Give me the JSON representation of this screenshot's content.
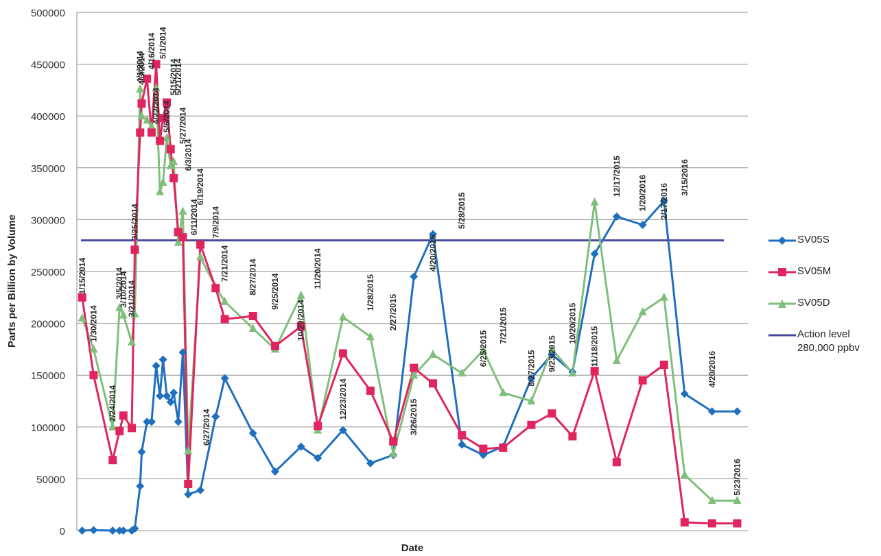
{
  "chart_data": {
    "type": "line",
    "xlabel": "Date",
    "ylabel": "Parts per Billion by Volume",
    "ylim": [
      0,
      500000
    ],
    "yticks": [
      0,
      50000,
      100000,
      150000,
      200000,
      250000,
      300000,
      350000,
      400000,
      450000,
      500000
    ],
    "xlim": [
      "2014-01-08",
      "2016-06-06"
    ],
    "grid": true,
    "legend_position": "right",
    "threshold": {
      "name": "Action level",
      "sublabel": "280,000 ppbv",
      "value": 280000,
      "color": "#4a4a9c"
    },
    "series": [
      {
        "name": "SV05S",
        "color": "#1f6fbf",
        "marker": "diamond",
        "points": [
          [
            "2014-01-15",
            0
          ],
          [
            "2014-01-30",
            500
          ],
          [
            "2014-02-24",
            0
          ],
          [
            "2014-03-05",
            0
          ],
          [
            "2014-03-10",
            0
          ],
          [
            "2014-03-21",
            0
          ],
          [
            "2014-03-25",
            2000
          ],
          [
            "2014-04-01",
            43000
          ],
          [
            "2014-04-03",
            76000
          ],
          [
            "2014-04-10",
            105000
          ],
          [
            "2014-04-16",
            105000
          ],
          [
            "2014-04-22",
            159000
          ],
          [
            "2014-04-27",
            130000
          ],
          [
            "2014-05-01",
            165000
          ],
          [
            "2014-05-06",
            130000
          ],
          [
            "2014-05-11",
            124000
          ],
          [
            "2014-05-15",
            133000
          ],
          [
            "2014-05-21",
            105000
          ],
          [
            "2014-05-27",
            172000
          ],
          [
            "2014-06-03",
            35000
          ],
          [
            "2014-06-19",
            39000
          ],
          [
            "2014-07-09",
            110000
          ],
          [
            "2014-07-21",
            147000
          ],
          [
            "2014-08-27",
            94000
          ],
          [
            "2014-09-25",
            57000
          ],
          [
            "2014-10-29",
            81000
          ],
          [
            "2014-11-20",
            70000
          ],
          [
            "2014-12-23",
            97000
          ],
          [
            "2015-01-28",
            65000
          ],
          [
            "2015-02-27",
            73000
          ],
          [
            "2015-03-26",
            245000
          ],
          [
            "2015-04-20",
            286000
          ],
          [
            "2015-05-28",
            83000
          ],
          [
            "2015-06-25",
            73000
          ],
          [
            "2015-07-21",
            81000
          ],
          [
            "2015-08-27",
            147000
          ],
          [
            "2015-09-23",
            170000
          ],
          [
            "2015-10-20",
            153000
          ],
          [
            "2015-11-18",
            267000
          ],
          [
            "2015-12-17",
            303000
          ],
          [
            "2016-01-20",
            295000
          ],
          [
            "2016-02-17",
            318000
          ],
          [
            "2016-03-15",
            132000
          ],
          [
            "2016-04-20",
            115000
          ],
          [
            "2016-05-23",
            115000
          ]
        ]
      },
      {
        "name": "SV05M",
        "color": "#e0245e",
        "marker": "square",
        "points": [
          [
            "2014-01-15",
            225000
          ],
          [
            "2014-01-30",
            150000
          ],
          [
            "2014-02-24",
            68000
          ],
          [
            "2014-03-05",
            96000
          ],
          [
            "2014-03-10",
            111000
          ],
          [
            "2014-03-21",
            99000
          ],
          [
            "2014-03-25",
            271000
          ],
          [
            "2014-04-01",
            384000
          ],
          [
            "2014-04-03",
            412000
          ],
          [
            "2014-04-10",
            436000
          ],
          [
            "2014-04-16",
            384000
          ],
          [
            "2014-04-22",
            450000
          ],
          [
            "2014-04-27",
            376000
          ],
          [
            "2014-05-01",
            398000
          ],
          [
            "2014-05-06",
            413000
          ],
          [
            "2014-05-11",
            368000
          ],
          [
            "2014-05-15",
            340000
          ],
          [
            "2014-05-21",
            288000
          ],
          [
            "2014-05-27",
            283000
          ],
          [
            "2014-06-03",
            45000
          ],
          [
            "2014-06-19",
            276000
          ],
          [
            "2014-07-09",
            234000
          ],
          [
            "2014-07-21",
            204000
          ],
          [
            "2014-08-27",
            207000
          ],
          [
            "2014-09-25",
            178000
          ],
          [
            "2014-10-29",
            197000
          ],
          [
            "2014-11-20",
            101000
          ],
          [
            "2014-12-23",
            171000
          ],
          [
            "2015-01-28",
            135000
          ],
          [
            "2015-02-27",
            86000
          ],
          [
            "2015-03-26",
            157000
          ],
          [
            "2015-04-20",
            142000
          ],
          [
            "2015-05-28",
            92000
          ],
          [
            "2015-06-25",
            79000
          ],
          [
            "2015-07-21",
            80000
          ],
          [
            "2015-08-27",
            102000
          ],
          [
            "2015-09-23",
            113000
          ],
          [
            "2015-10-20",
            91000
          ],
          [
            "2015-11-18",
            154000
          ],
          [
            "2015-12-17",
            66000
          ],
          [
            "2016-01-20",
            145000
          ],
          [
            "2016-02-17",
            160000
          ],
          [
            "2016-03-15",
            8000
          ],
          [
            "2016-04-20",
            7000
          ],
          [
            "2016-05-23",
            7000
          ]
        ]
      },
      {
        "name": "SV05D",
        "color": "#7fbf7b",
        "marker": "triangle",
        "points": [
          [
            "2014-01-15",
            205000
          ],
          [
            "2014-01-30",
            175000
          ],
          [
            "2014-02-24",
            100000
          ],
          [
            "2014-03-05",
            215000
          ],
          [
            "2014-03-10",
            208000
          ],
          [
            "2014-03-21",
            182000
          ],
          [
            "2014-03-25",
            209000
          ],
          [
            "2014-04-01",
            426000
          ],
          [
            "2014-04-03",
            400000
          ],
          [
            "2014-04-10",
            396000
          ],
          [
            "2014-04-16",
            390000
          ],
          [
            "2014-04-22",
            427000
          ],
          [
            "2014-04-27",
            327000
          ],
          [
            "2014-05-01",
            336000
          ],
          [
            "2014-05-06",
            379000
          ],
          [
            "2014-05-11",
            352000
          ],
          [
            "2014-05-15",
            356000
          ],
          [
            "2014-05-21",
            278000
          ],
          [
            "2014-05-27",
            308000
          ],
          [
            "2014-06-03",
            77000
          ],
          [
            "2014-06-19",
            264000
          ],
          [
            "2014-07-09",
            235000
          ],
          [
            "2014-07-21",
            221000
          ],
          [
            "2014-08-27",
            195000
          ],
          [
            "2014-09-25",
            175000
          ],
          [
            "2014-10-29",
            227000
          ],
          [
            "2014-11-20",
            97000
          ],
          [
            "2014-12-23",
            206000
          ],
          [
            "2015-01-28",
            187000
          ],
          [
            "2015-02-27",
            74000
          ],
          [
            "2015-03-26",
            150000
          ],
          [
            "2015-04-20",
            170000
          ],
          [
            "2015-05-28",
            152000
          ],
          [
            "2015-06-25",
            174000
          ],
          [
            "2015-07-21",
            133000
          ],
          [
            "2015-08-27",
            125000
          ],
          [
            "2015-09-23",
            175000
          ],
          [
            "2015-10-20",
            152000
          ],
          [
            "2015-11-18",
            317000
          ],
          [
            "2015-12-17",
            164000
          ],
          [
            "2016-01-20",
            211000
          ],
          [
            "2016-02-17",
            225000
          ],
          [
            "2016-03-15",
            54000
          ],
          [
            "2016-04-20",
            29000
          ],
          [
            "2016-05-23",
            29000
          ]
        ]
      }
    ],
    "annotations": [
      {
        "text": "1/15/2014",
        "date": "2014-01-15",
        "y": 228000
      },
      {
        "text": "1/30/2014",
        "date": "2014-01-30",
        "y": 182000
      },
      {
        "text": "2/24/2014",
        "date": "2014-02-24",
        "y": 105000
      },
      {
        "text": "3/5/2014",
        "date": "2014-03-05",
        "y": 223000
      },
      {
        "text": "3/10/2014",
        "date": "2014-03-10",
        "y": 215000
      },
      {
        "text": "3/21/2014",
        "date": "2014-03-21",
        "y": 206000
      },
      {
        "text": "3/25/2014",
        "date": "2014-03-25",
        "y": 280000
      },
      {
        "text": "4/1/2014",
        "date": "2014-04-01",
        "y": 432000
      },
      {
        "text": "4/3/2014",
        "date": "2014-04-03",
        "y": 430000
      },
      {
        "text": "4/16/2014",
        "date": "2014-04-16",
        "y": 445000
      },
      {
        "text": "4/22/2014",
        "date": "2014-04-22",
        "y": 392000
      },
      {
        "text": "5/1/2014",
        "date": "2014-05-01",
        "y": 455000
      },
      {
        "text": "5/6/2014",
        "date": "2014-05-06",
        "y": 384000
      },
      {
        "text": "5/15/2014",
        "date": "2014-05-15",
        "y": 420000
      },
      {
        "text": "5/21/2014",
        "date": "2014-05-21",
        "y": 420000
      },
      {
        "text": "5/27/2014",
        "date": "2014-05-27",
        "y": 373000
      },
      {
        "text": "6/3/2014",
        "date": "2014-06-03",
        "y": 347000
      },
      {
        "text": "6/19/2014",
        "date": "2014-06-19",
        "y": 314000
      },
      {
        "text": "6/11/2014",
        "date": "2014-06-11",
        "y": 285000
      },
      {
        "text": "6/27/2014",
        "date": "2014-06-27",
        "y": 82000
      },
      {
        "text": "7/9/2014",
        "date": "2014-07-09",
        "y": 282000
      },
      {
        "text": "7/21/2014",
        "date": "2014-07-21",
        "y": 240000
      },
      {
        "text": "8/27/2014",
        "date": "2014-08-27",
        "y": 227000
      },
      {
        "text": "9/25/2014",
        "date": "2014-09-25",
        "y": 213000
      },
      {
        "text": "10/29/2014",
        "date": "2014-10-29",
        "y": 183000
      },
      {
        "text": "11/20/2014",
        "date": "2014-11-20",
        "y": 233000
      },
      {
        "text": "12/23/2014",
        "date": "2014-12-23",
        "y": 107000
      },
      {
        "text": "1/28/2015",
        "date": "2015-01-28",
        "y": 212000
      },
      {
        "text": "2/27/2015",
        "date": "2015-02-27",
        "y": 193000
      },
      {
        "text": "3/26/2015",
        "date": "2015-03-26",
        "y": 92000
      },
      {
        "text": "4/20/2015",
        "date": "2015-04-20",
        "y": 250000
      },
      {
        "text": "5/28/2015",
        "date": "2015-05-28",
        "y": 291000
      },
      {
        "text": "6/25/2015",
        "date": "2015-06-25",
        "y": 158000
      },
      {
        "text": "7/21/2015",
        "date": "2015-07-21",
        "y": 180000
      },
      {
        "text": "8/27/2015",
        "date": "2015-08-27",
        "y": 139000
      },
      {
        "text": "9/23/2015",
        "date": "2015-09-23",
        "y": 153000
      },
      {
        "text": "10/20/2015",
        "date": "2015-10-20",
        "y": 180000
      },
      {
        "text": "11/18/2015",
        "date": "2015-11-18",
        "y": 158000
      },
      {
        "text": "12/17/2015",
        "date": "2015-12-17",
        "y": 322000
      },
      {
        "text": "1/20/2016",
        "date": "2016-01-20",
        "y": 308000
      },
      {
        "text": "2/17/2016",
        "date": "2016-02-17",
        "y": 300000
      },
      {
        "text": "3/15/2016",
        "date": "2016-03-15",
        "y": 323000
      },
      {
        "text": "4/20/2016",
        "date": "2016-04-20",
        "y": 138000
      },
      {
        "text": "5/23/2016",
        "date": "2016-05-23",
        "y": 34000
      }
    ]
  }
}
